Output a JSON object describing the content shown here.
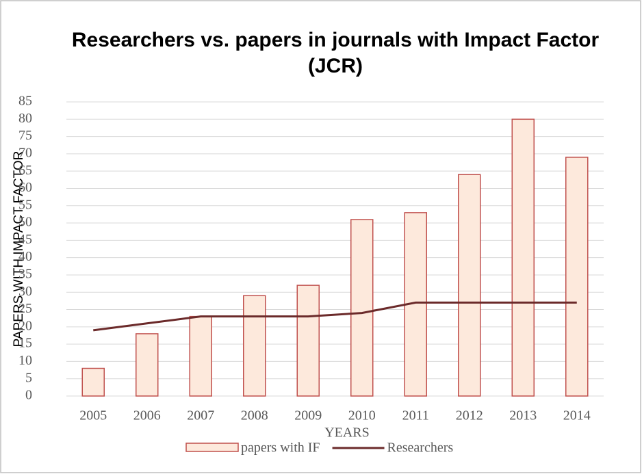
{
  "chart_data": {
    "type": "bar",
    "title": "Researchers vs. papers in journals with Impact Factor (JCR)",
    "x_label": "YEARS",
    "y_label": "PAPERS WITH IMPACT FACTOR",
    "categories": [
      "2005",
      "2006",
      "2007",
      "2008",
      "2009",
      "2010",
      "2011",
      "2012",
      "2013",
      "2014"
    ],
    "series": [
      {
        "name": "papers with IF",
        "type": "bar",
        "color": "#fde9dc",
        "edge_color": "#c0504d",
        "values": [
          8,
          18,
          23,
          29,
          32,
          51,
          53,
          64,
          80,
          69
        ]
      },
      {
        "name": "Researchers",
        "type": "line",
        "color": "#6b2a2a",
        "values": [
          19,
          21,
          23,
          23,
          23,
          24,
          27,
          27,
          27,
          27
        ]
      }
    ],
    "ylim": [
      0,
      85
    ],
    "yticks": [
      0,
      5,
      10,
      15,
      20,
      25,
      30,
      35,
      40,
      45,
      50,
      55,
      60,
      65,
      70,
      75,
      80,
      85
    ],
    "grid": true,
    "legend": "bottom"
  }
}
